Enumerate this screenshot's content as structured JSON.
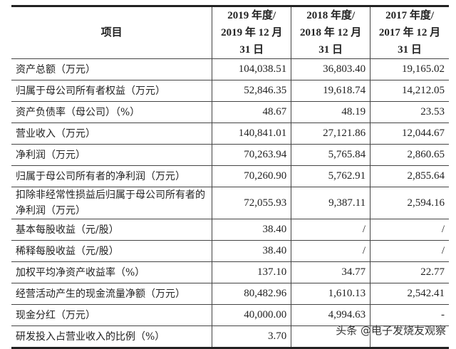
{
  "header": {
    "item": "项目",
    "cols": [
      "2019 年度/ 2019 年 12 月 31 日",
      "2018 年度/ 2018 年 12 月 31 日",
      "2017 年度/ 2017 年 12 月 31 日"
    ]
  },
  "rows": [
    {
      "label": "资产总额（万元）",
      "values": [
        "104,038.51",
        "36,803.40",
        "19,165.02"
      ]
    },
    {
      "label": "归属于母公司所有者权益（万元）",
      "values": [
        "52,846.35",
        "19,618.74",
        "14,212.05"
      ]
    },
    {
      "label": "资产负债率（母公司）（%）",
      "values": [
        "48.67",
        "48.19",
        "23.53"
      ]
    },
    {
      "label": "营业收入（万元）",
      "values": [
        "140,841.01",
        "27,121.86",
        "12,044.67"
      ]
    },
    {
      "label": "净利润（万元）",
      "values": [
        "70,263.94",
        "5,765.84",
        "2,860.65"
      ]
    },
    {
      "label": "归属于母公司所有者的净利润（万元）",
      "values": [
        "70,260.90",
        "5,762.91",
        "2,855.64"
      ]
    },
    {
      "label": "扣除非经常性损益后归属于母公司所有者的净利润（万元）",
      "values": [
        "72,055.93",
        "9,387.11",
        "2,594.16"
      ]
    },
    {
      "label": "基本每股收益（元/股）",
      "values": [
        "38.40",
        "/",
        "/"
      ]
    },
    {
      "label": "稀释每股收益（元/股）",
      "values": [
        "38.40",
        "/",
        "/"
      ]
    },
    {
      "label": "加权平均净资产收益率（%）",
      "values": [
        "137.10",
        "34.77",
        "22.77"
      ]
    },
    {
      "label": "经营活动产生的现金流量净额（万元）",
      "values": [
        "80,482.96",
        "1,610.13",
        "2,542.41"
      ]
    },
    {
      "label": "现金分红（万元）",
      "values": [
        "40,000.00",
        "4,994.63",
        "-"
      ]
    },
    {
      "label": "研发投入占营业收入的比例（%）",
      "values": [
        "3.70",
        "",
        ""
      ]
    }
  ],
  "watermark": "头条 @电子发烧友观察"
}
